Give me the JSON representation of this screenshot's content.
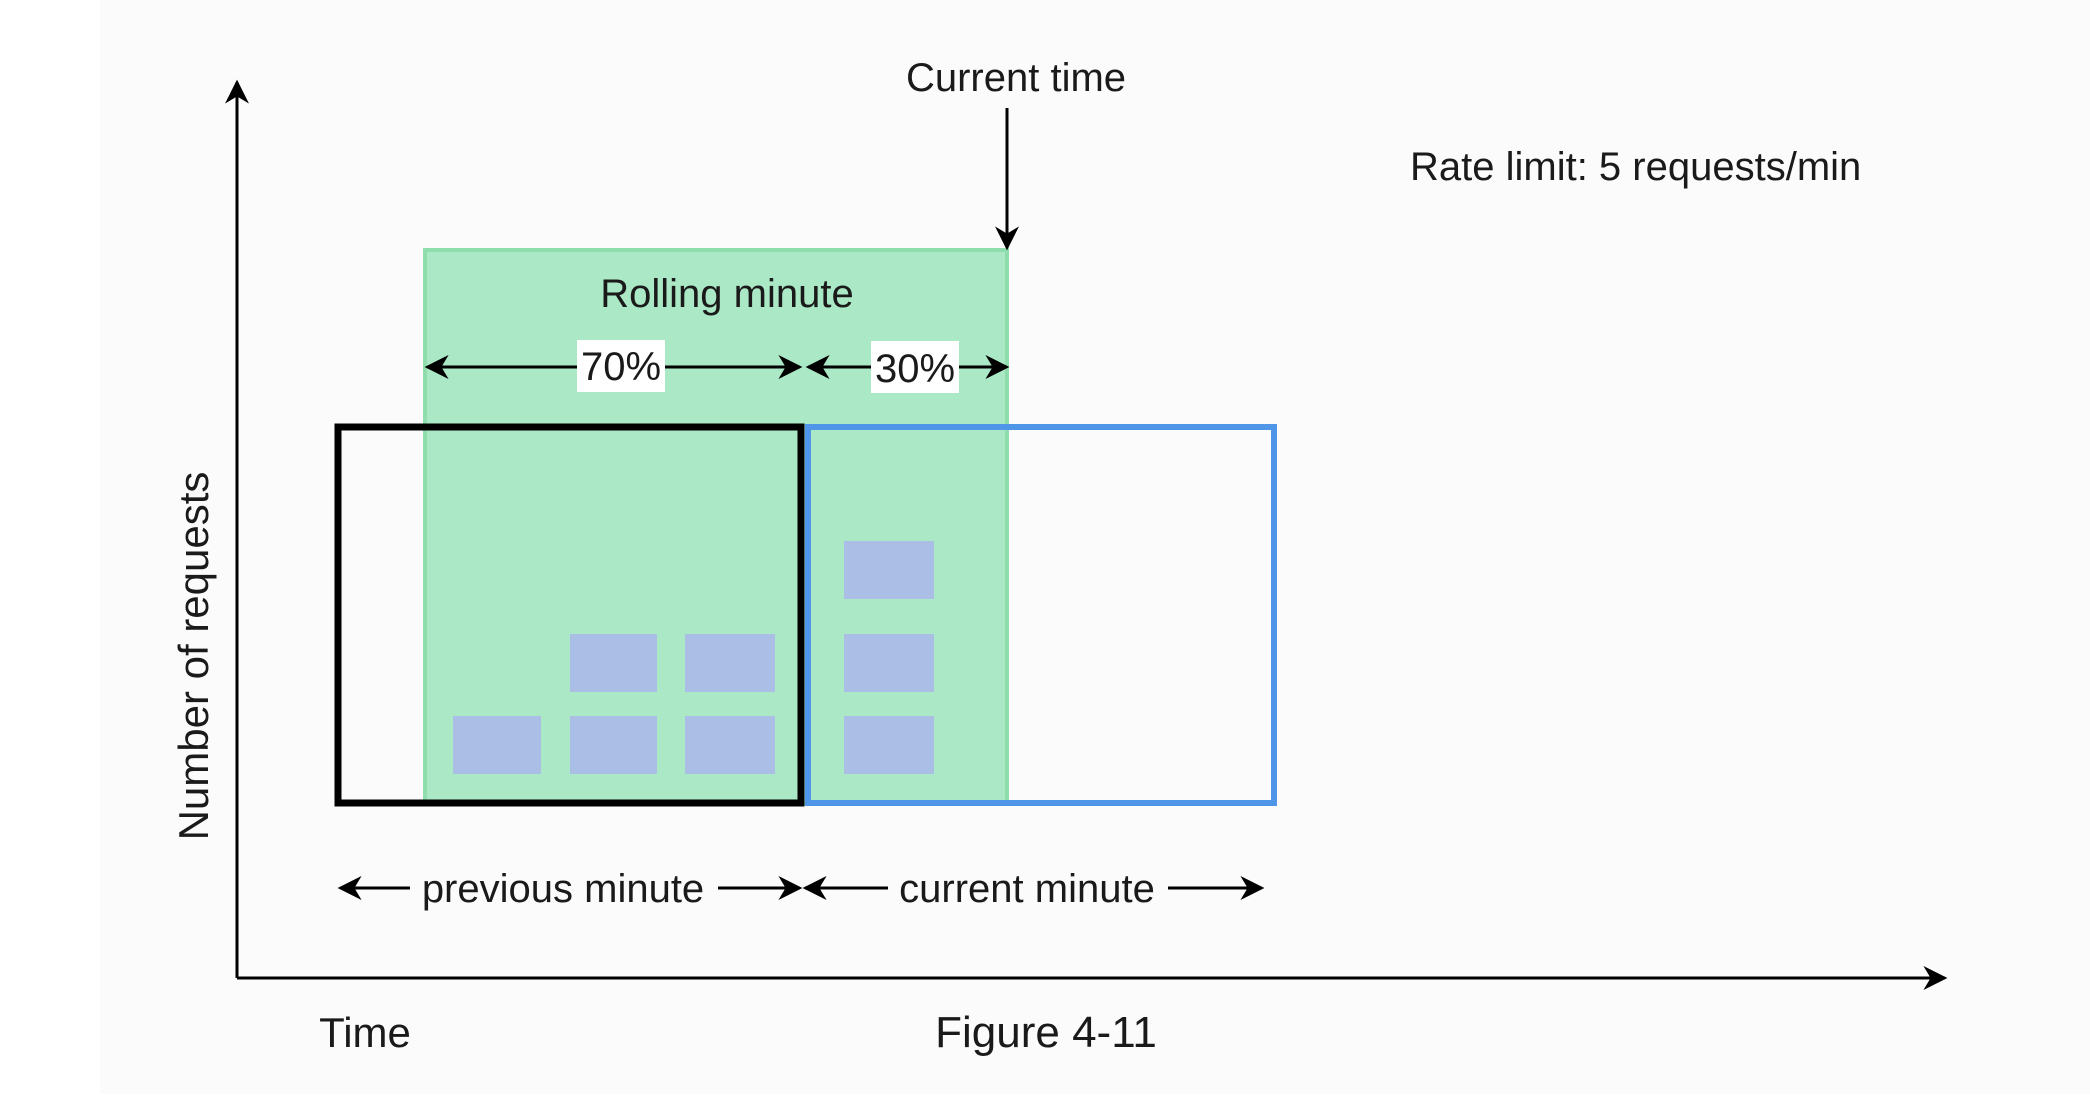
{
  "figure_label": "Figure 4-11",
  "rate_limit_text": "Rate limit: 5 requests/min",
  "current_time_label": "Current time",
  "rolling_minute_label": "Rolling minute",
  "axes": {
    "y_label": "Number of requests",
    "x_label": "Time"
  },
  "segments": {
    "previous_share": "70%",
    "current_share": "30%"
  },
  "windows": {
    "previous_label": "previous minute",
    "current_label": "current minute"
  },
  "requests": {
    "previous_minute_in_window": 5,
    "current_minute": 3
  },
  "colors": {
    "background": "#fbfbfb",
    "rolling_window_fill": "#abe9c6",
    "rolling_window_border": "#8fdcad",
    "previous_window_border": "#000000",
    "current_window_border": "#4f95e8",
    "request_block": "#abbfe6",
    "label_box": "#ffffff"
  }
}
